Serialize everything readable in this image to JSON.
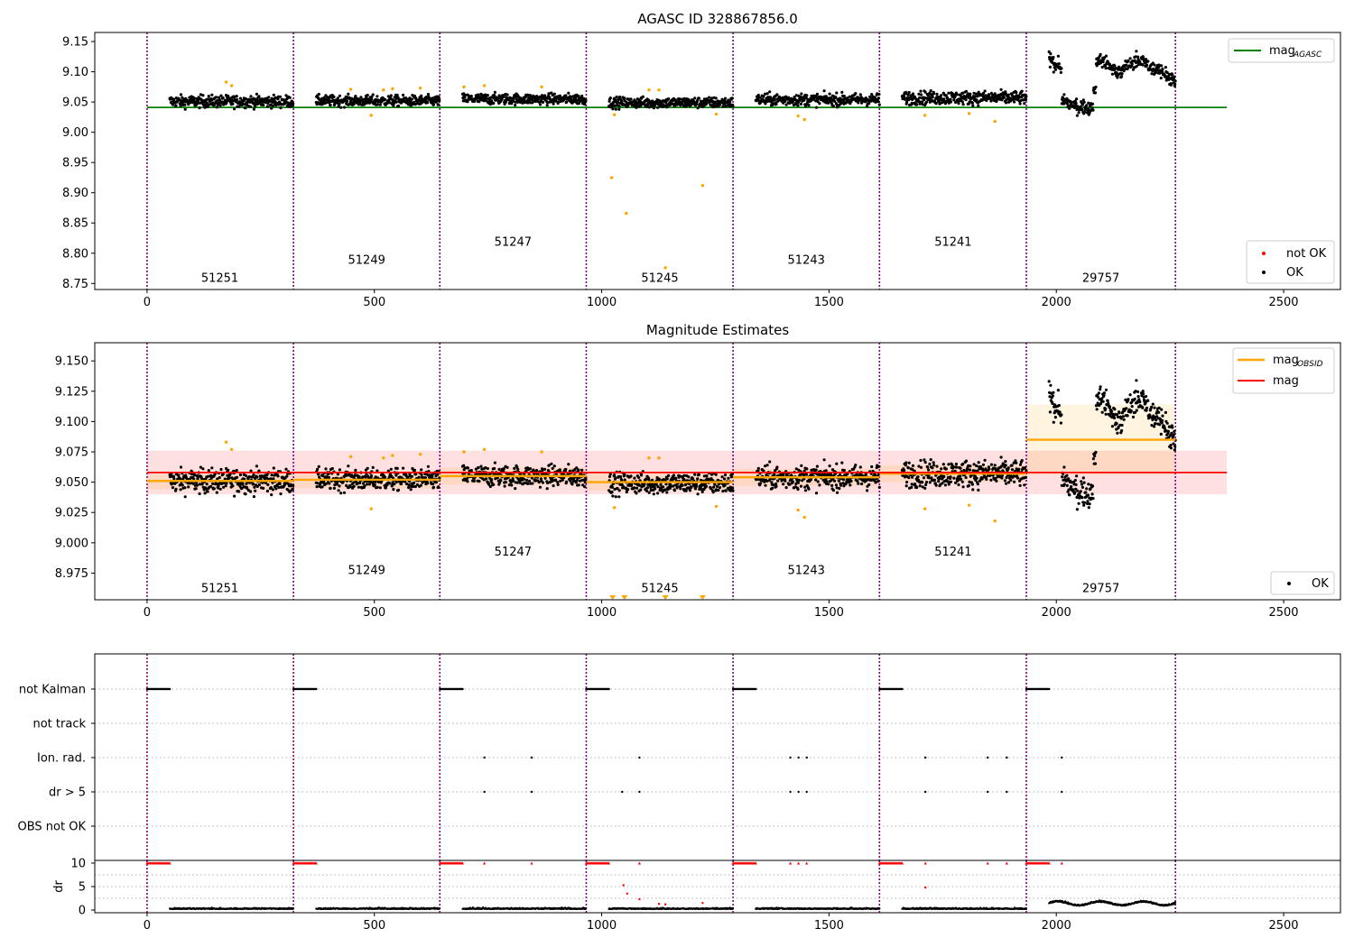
{
  "chart_data": [
    {
      "type": "scatter",
      "title": "AGASC ID 328867856.0",
      "xlim": [
        -115,
        2625
      ],
      "ylim": [
        8.74,
        9.165
      ],
      "xticks": [
        "0",
        "500",
        "1000",
        "1500",
        "2000",
        "2500"
      ],
      "xtick_values": [
        0,
        500,
        1000,
        1500,
        2000,
        2500
      ],
      "yticks": [
        "8.75",
        "8.80",
        "8.85",
        "8.90",
        "8.95",
        "9.00",
        "9.05",
        "9.10",
        "9.15"
      ],
      "ytick_values": [
        8.75,
        8.8,
        8.85,
        8.9,
        8.95,
        9.0,
        9.05,
        9.1,
        9.15
      ],
      "mag_agasc": 9.041,
      "mag_agasc_range": [
        0,
        2375
      ],
      "obs_boundaries": [
        0,
        322,
        644,
        966,
        1289,
        1611,
        1934,
        2262
      ],
      "obsids": [
        {
          "label": "51251",
          "x": 160,
          "y": 8.76
        },
        {
          "label": "51249",
          "x": 483,
          "y": 8.79
        },
        {
          "label": "51247",
          "x": 805,
          "y": 8.82
        },
        {
          "label": "51245",
          "x": 1128,
          "y": 8.76
        },
        {
          "label": "51243",
          "x": 1450,
          "y": 8.79
        },
        {
          "label": "51241",
          "x": 1773,
          "y": 8.82
        },
        {
          "label": "29757",
          "x": 2098,
          "y": 8.76
        }
      ],
      "segments": [
        {
          "start": 50,
          "end": 322,
          "mean": 9.051,
          "spread": 0.009
        },
        {
          "start": 372,
          "end": 644,
          "mean": 9.052,
          "spread": 0.008
        },
        {
          "start": 694,
          "end": 966,
          "mean": 9.055,
          "spread": 0.008
        },
        {
          "start": 1016,
          "end": 1289,
          "mean": 9.049,
          "spread": 0.008
        },
        {
          "start": 1339,
          "end": 1611,
          "mean": 9.054,
          "spread": 0.009
        },
        {
          "start": 1661,
          "end": 1934,
          "mean": 9.057,
          "spread": 0.01
        },
        {
          "start": 1984,
          "end": 2262,
          "mean": 9.085,
          "spread": 0.03
        }
      ],
      "not_ok_points": [
        {
          "x": 174,
          "y": 9.083
        },
        {
          "x": 186,
          "y": 9.077
        },
        {
          "x": 448,
          "y": 9.071
        },
        {
          "x": 493,
          "y": 9.028
        },
        {
          "x": 520,
          "y": 9.07
        },
        {
          "x": 540,
          "y": 9.072
        },
        {
          "x": 601,
          "y": 9.073
        },
        {
          "x": 697,
          "y": 9.075
        },
        {
          "x": 742,
          "y": 9.077
        },
        {
          "x": 868,
          "y": 9.075
        },
        {
          "x": 1028,
          "y": 9.029
        },
        {
          "x": 1104,
          "y": 9.07
        },
        {
          "x": 1126,
          "y": 9.07
        },
        {
          "x": 1252,
          "y": 9.03
        },
        {
          "x": 1022,
          "y": 8.925
        },
        {
          "x": 1054,
          "y": 8.866
        },
        {
          "x": 1222,
          "y": 8.912
        },
        {
          "x": 1140,
          "y": 8.776
        },
        {
          "x": 1432,
          "y": 9.027
        },
        {
          "x": 1446,
          "y": 9.021
        },
        {
          "x": 1711,
          "y": 9.028
        },
        {
          "x": 1808,
          "y": 9.031
        },
        {
          "x": 1865,
          "y": 9.018
        }
      ],
      "legend_top": [
        {
          "label": "mag",
          "sub": "AGASC",
          "color": "#008000"
        }
      ],
      "legend_bottom": [
        {
          "label": "not OK",
          "color": "#ff0000"
        },
        {
          "label": "OK",
          "color": "#000000"
        }
      ]
    },
    {
      "type": "scatter",
      "title": "Magnitude Estimates",
      "xlim": [
        -115,
        2625
      ],
      "ylim": [
        8.953,
        9.165
      ],
      "xticks": [
        "0",
        "500",
        "1000",
        "1500",
        "2000",
        "2500"
      ],
      "xtick_values": [
        0,
        500,
        1000,
        1500,
        2000,
        2500
      ],
      "yticks": [
        "8.975",
        "9.000",
        "9.025",
        "9.050",
        "9.075",
        "9.100",
        "9.125",
        "9.150"
      ],
      "ytick_values": [
        8.975,
        9.0,
        9.025,
        9.05,
        9.075,
        9.1,
        9.125,
        9.15
      ],
      "mag": 9.058,
      "mag_band": [
        9.04,
        9.076
      ],
      "mag_range": [
        0,
        2375
      ],
      "obsid_mags": [
        9.051,
        9.052,
        9.055,
        9.05,
        9.054,
        9.057,
        9.085
      ],
      "obsid_bands": [
        [
          9.044,
          9.058
        ],
        [
          9.045,
          9.059
        ],
        [
          9.048,
          9.062
        ],
        [
          9.043,
          9.057
        ],
        [
          9.047,
          9.061
        ],
        [
          9.05,
          9.064
        ],
        [
          9.056,
          9.114
        ]
      ],
      "obsids": [
        {
          "label": "51251",
          "x": 160,
          "y": 8.963
        },
        {
          "label": "51249",
          "x": 483,
          "y": 8.978
        },
        {
          "label": "51247",
          "x": 805,
          "y": 8.993
        },
        {
          "label": "51245",
          "x": 1128,
          "y": 8.963
        },
        {
          "label": "51243",
          "x": 1450,
          "y": 8.978
        },
        {
          "label": "51241",
          "x": 1773,
          "y": 8.993
        },
        {
          "label": "29757",
          "x": 2098,
          "y": 8.963
        }
      ],
      "lower_limit_markers": [
        1024,
        1050,
        1140,
        1222
      ],
      "legend_top": [
        {
          "label": "mag",
          "sub": "OBSID",
          "color": "#ffa500"
        },
        {
          "label": "mag",
          "sub": "",
          "color": "#ff0000"
        }
      ],
      "legend_bottom": [
        {
          "label": "OK",
          "color": "#000000"
        }
      ]
    },
    {
      "type": "scatter",
      "title": "",
      "flag_labels": [
        "not Kalman",
        "not track",
        "Ion. rad.",
        "dr > 5",
        "OBS not OK"
      ],
      "flag_events": {
        "not Kalman": "segment starts (first ~50 samples)",
        "Ion. rad.": [
          742,
          846,
          1083,
          1415,
          1433,
          1451,
          1712,
          1849,
          1891,
          2012
        ],
        "dr > 5": [
          742,
          846,
          1045,
          1083,
          1415,
          1433,
          1451,
          1712,
          1849,
          1891,
          2012
        ]
      },
      "dr_ylim": [
        0,
        10
      ],
      "dr_yticks": [
        "0",
        "5",
        "10"
      ],
      "dr_ytick_values": [
        0,
        5,
        10
      ],
      "dr_ylabel": "dr",
      "dr_outliers": [
        {
          "x": 1048,
          "y": 5.3
        },
        {
          "x": 1056,
          "y": 3.5
        },
        {
          "x": 1083,
          "y": 2.3
        },
        {
          "x": 1126,
          "y": 1.3
        },
        {
          "x": 1140,
          "y": 1.2
        },
        {
          "x": 1222,
          "y": 1.5
        },
        {
          "x": 1712,
          "y": 4.8
        }
      ],
      "xticks": [
        "0",
        "500",
        "1000",
        "1500",
        "2000",
        "2500"
      ],
      "xtick_values": [
        0,
        500,
        1000,
        1500,
        2000,
        2500
      ]
    }
  ]
}
